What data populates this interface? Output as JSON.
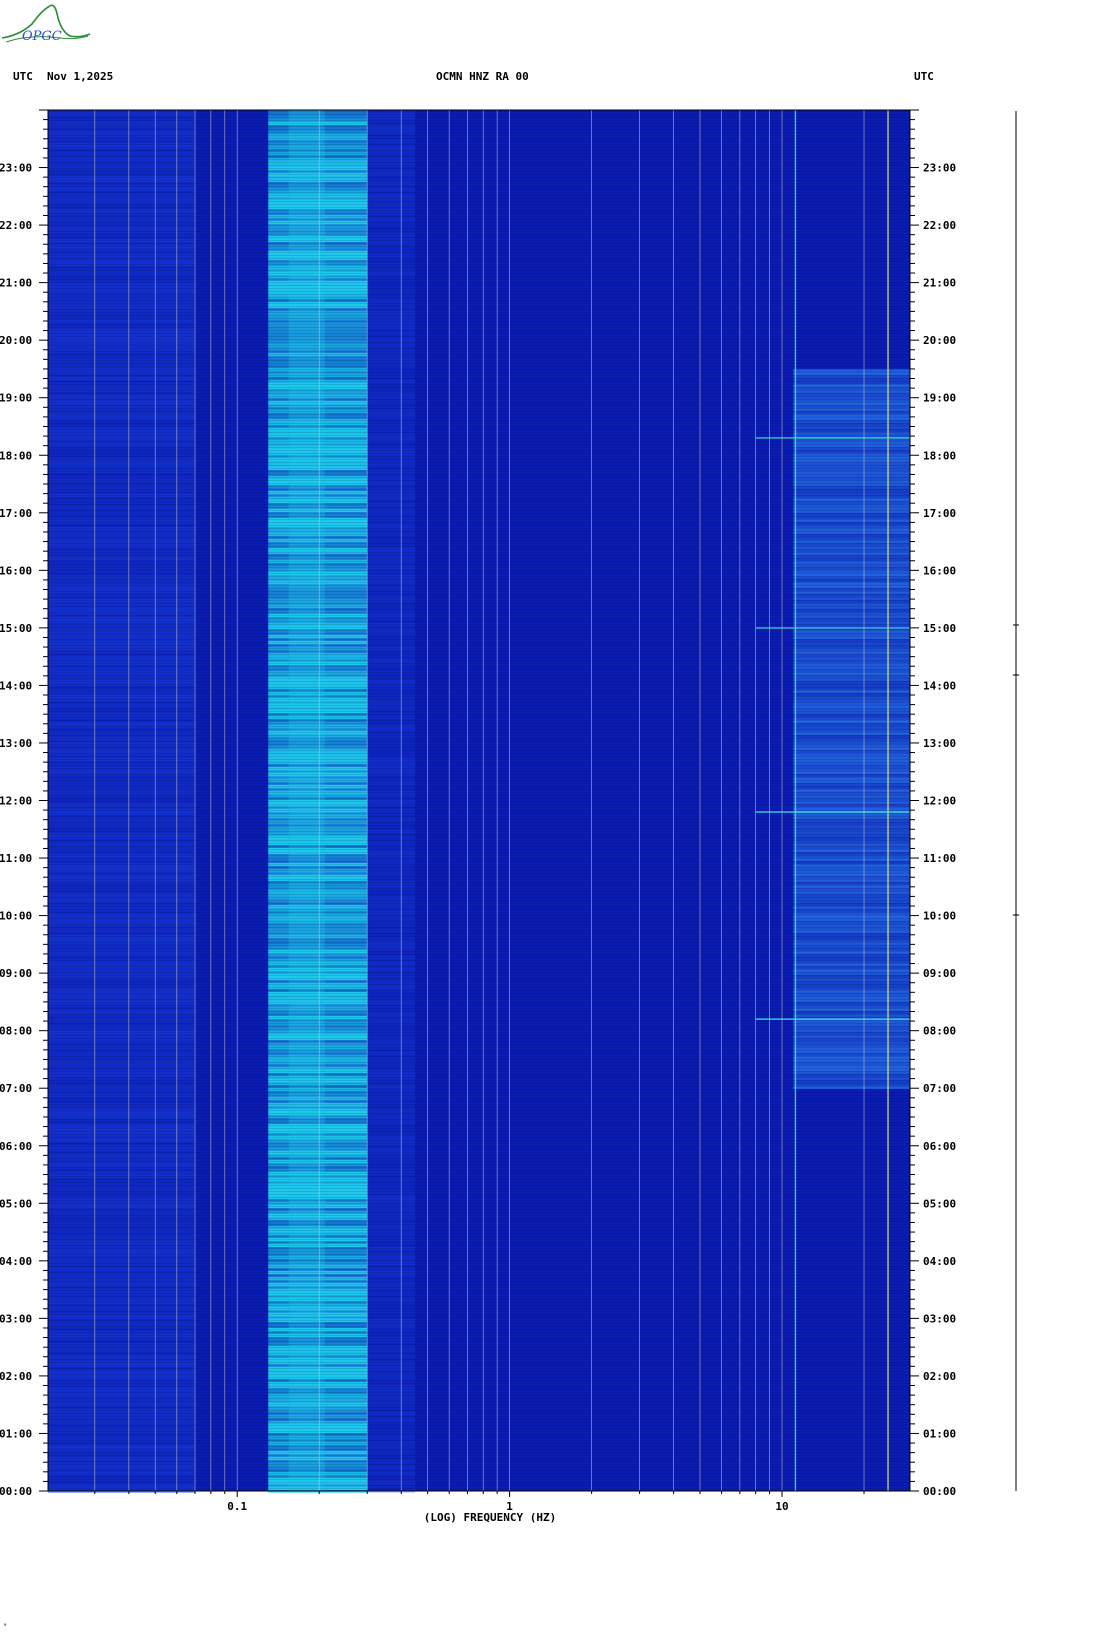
{
  "header": {
    "left_zone": "UTC",
    "date": "Nov 1,2025",
    "station": "OCMN HNZ RA 00",
    "right_zone": "UTC"
  },
  "logo": {
    "text": "OPGC"
  },
  "footer": {
    "mark": "ᵃ"
  },
  "colors": {
    "background": "#ffffff",
    "plot_base": "#0a1cb4",
    "low_band": "#1c44e6",
    "microseism": "#1ec8ee",
    "high_noise": "#2a7cf0",
    "gridline": "#c8c8c8",
    "line_cyan": "#40f0e0",
    "line_yellow": "#e8f070"
  },
  "chart_data": {
    "type": "heatmap",
    "xlabel": "(LOG) FREQUENCY (HZ)",
    "x_scale": "log",
    "x_ticks": [
      0.1,
      1,
      10
    ],
    "x_tick_labels": [
      "0.1",
      "1",
      "10"
    ],
    "x_range_hz": [
      0.0202,
      29.5
    ],
    "y_range_hours": [
      0,
      24
    ],
    "y_ticks_hours": [
      0,
      1,
      2,
      3,
      4,
      5,
      6,
      7,
      8,
      9,
      10,
      11,
      12,
      13,
      14,
      15,
      16,
      17,
      18,
      19,
      20,
      21,
      22,
      23
    ],
    "y_tick_labels": [
      "00:00",
      "01:00",
      "02:00",
      "03:00",
      "04:00",
      "05:00",
      "06:00",
      "07:00",
      "08:00",
      "09:00",
      "10:00",
      "11:00",
      "12:00",
      "13:00",
      "14:00",
      "15:00",
      "16:00",
      "17:00",
      "18:00",
      "19:00",
      "20:00",
      "21:00",
      "22:00",
      "23:00"
    ],
    "grid_frequencies_hz": [
      0.03,
      0.04,
      0.05,
      0.06,
      0.07,
      0.08,
      0.09,
      0.1,
      0.2,
      0.3,
      0.4,
      0.5,
      0.6,
      0.7,
      0.8,
      0.9,
      1,
      2,
      3,
      4,
      5,
      6,
      7,
      8,
      9,
      10,
      20
    ],
    "energy_bands": [
      {
        "label": "low-frequency noise",
        "f_min_hz": 0.0202,
        "f_max_hz": 0.07,
        "level": 0.45
      },
      {
        "label": "microseism",
        "f_min_hz": 0.13,
        "f_max_hz": 0.3,
        "level": 0.9,
        "peak_hz": 0.18
      },
      {
        "label": "microseism tail",
        "f_min_hz": 0.3,
        "f_max_hz": 0.45,
        "level": 0.35
      },
      {
        "label": "cultural noise",
        "f_min_hz": 11,
        "f_max_hz": 29.5,
        "level": 0.6,
        "hours_active": [
          7,
          19.5
        ]
      }
    ],
    "persistent_lines_hz": [
      11.2,
      24.5
    ],
    "bright_events_hours": [
      8.2,
      11.8,
      15.0,
      18.3
    ]
  }
}
